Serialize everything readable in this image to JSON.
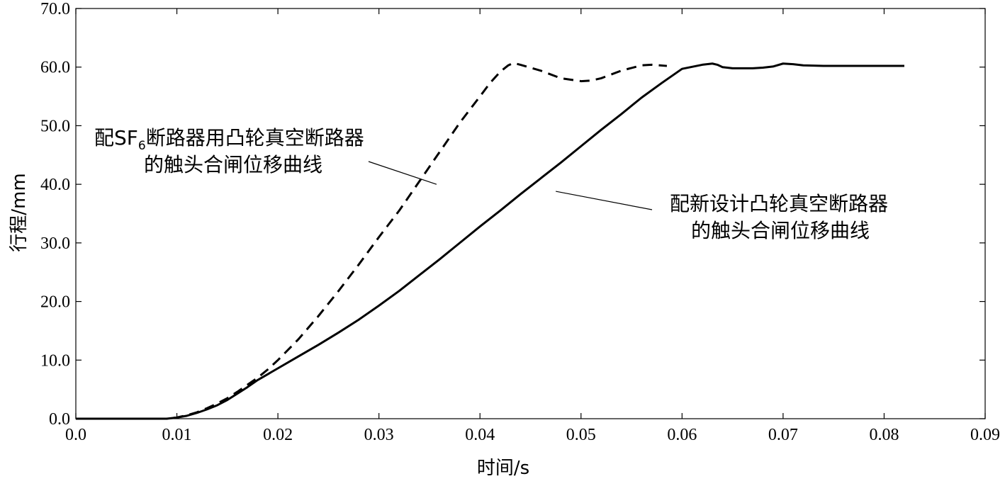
{
  "chart_data": {
    "type": "line",
    "title": "",
    "xlabel": "时间/s",
    "ylabel": "行程/mm",
    "xlim": [
      0,
      0.09
    ],
    "ylim": [
      0,
      70
    ],
    "grid": false,
    "x_ticks": [
      0.0,
      0.01,
      0.02,
      0.03,
      0.04,
      0.05,
      0.06,
      0.07,
      0.08,
      0.09
    ],
    "x_tick_labels": [
      "0.0",
      "0.01",
      "0.02",
      "0.03",
      "0.04",
      "0.05",
      "0.06",
      "0.07",
      "0.08",
      "0.09"
    ],
    "y_ticks": [
      0,
      10,
      20,
      30,
      40,
      50,
      60,
      70
    ],
    "y_tick_labels": [
      "0.0",
      "10.0",
      "20.0",
      "30.0",
      "40.0",
      "50.0",
      "60.0",
      "70.0"
    ],
    "series": [
      {
        "style": "dashed",
        "color": "#000000",
        "x": [
          0,
          0.009,
          0.01,
          0.011,
          0.012,
          0.013,
          0.014,
          0.015,
          0.016,
          0.017,
          0.018,
          0.019,
          0.02,
          0.022,
          0.024,
          0.026,
          0.028,
          0.03,
          0.032,
          0.034,
          0.036,
          0.038,
          0.04,
          0.041,
          0.042,
          0.0428,
          0.0433,
          0.044,
          0.046,
          0.048,
          0.05,
          0.051,
          0.052,
          0.054,
          0.056,
          0.057,
          0.0585
        ],
        "y": [
          0,
          0,
          0.2,
          0.6,
          1.1,
          1.8,
          2.6,
          3.5,
          4.6,
          5.8,
          7.0,
          8.4,
          10.0,
          13.5,
          17.5,
          21.8,
          26.3,
          31.0,
          35.5,
          40.5,
          45.5,
          50.5,
          55.0,
          57.3,
          59.2,
          60.3,
          60.7,
          60.4,
          59.4,
          58.1,
          57.6,
          57.7,
          58.1,
          59.4,
          60.3,
          60.4,
          60.2
        ]
      },
      {
        "style": "solid",
        "color": "#000000",
        "x": [
          0,
          0.009,
          0.01,
          0.011,
          0.012,
          0.013,
          0.014,
          0.015,
          0.016,
          0.017,
          0.018,
          0.019,
          0.02,
          0.022,
          0.024,
          0.026,
          0.028,
          0.03,
          0.032,
          0.034,
          0.036,
          0.038,
          0.04,
          0.042,
          0.044,
          0.046,
          0.048,
          0.05,
          0.052,
          0.054,
          0.056,
          0.058,
          0.06,
          0.062,
          0.063,
          0.0635,
          0.064,
          0.065,
          0.066,
          0.067,
          0.068,
          0.069,
          0.07,
          0.071,
          0.072,
          0.074,
          0.076,
          0.078,
          0.08,
          0.082
        ],
        "y": [
          0,
          0,
          0.2,
          0.5,
          1.0,
          1.6,
          2.3,
          3.2,
          4.3,
          5.4,
          6.6,
          7.6,
          8.6,
          10.6,
          12.6,
          14.7,
          16.9,
          19.3,
          21.8,
          24.5,
          27.2,
          30.0,
          32.8,
          35.5,
          38.3,
          41.0,
          43.7,
          46.5,
          49.3,
          52.0,
          54.8,
          57.3,
          59.7,
          60.4,
          60.6,
          60.4,
          60.0,
          59.8,
          59.8,
          59.8,
          59.9,
          60.1,
          60.6,
          60.5,
          60.3,
          60.2,
          60.2,
          60.2,
          60.2,
          60.2
        ]
      }
    ],
    "annotations": [
      {
        "lines": [
          "配SF",
          "6",
          "断路器用凸轮真空断路器",
          "的触头合闸位移曲线"
        ],
        "target": "dashed",
        "point": [
          0.0357,
          40.0
        ]
      },
      {
        "lines": [
          "配新设计凸轮真空断路器",
          "的触头合闸位移曲线"
        ],
        "target": "solid",
        "point": [
          0.0475,
          38.8
        ]
      }
    ]
  }
}
